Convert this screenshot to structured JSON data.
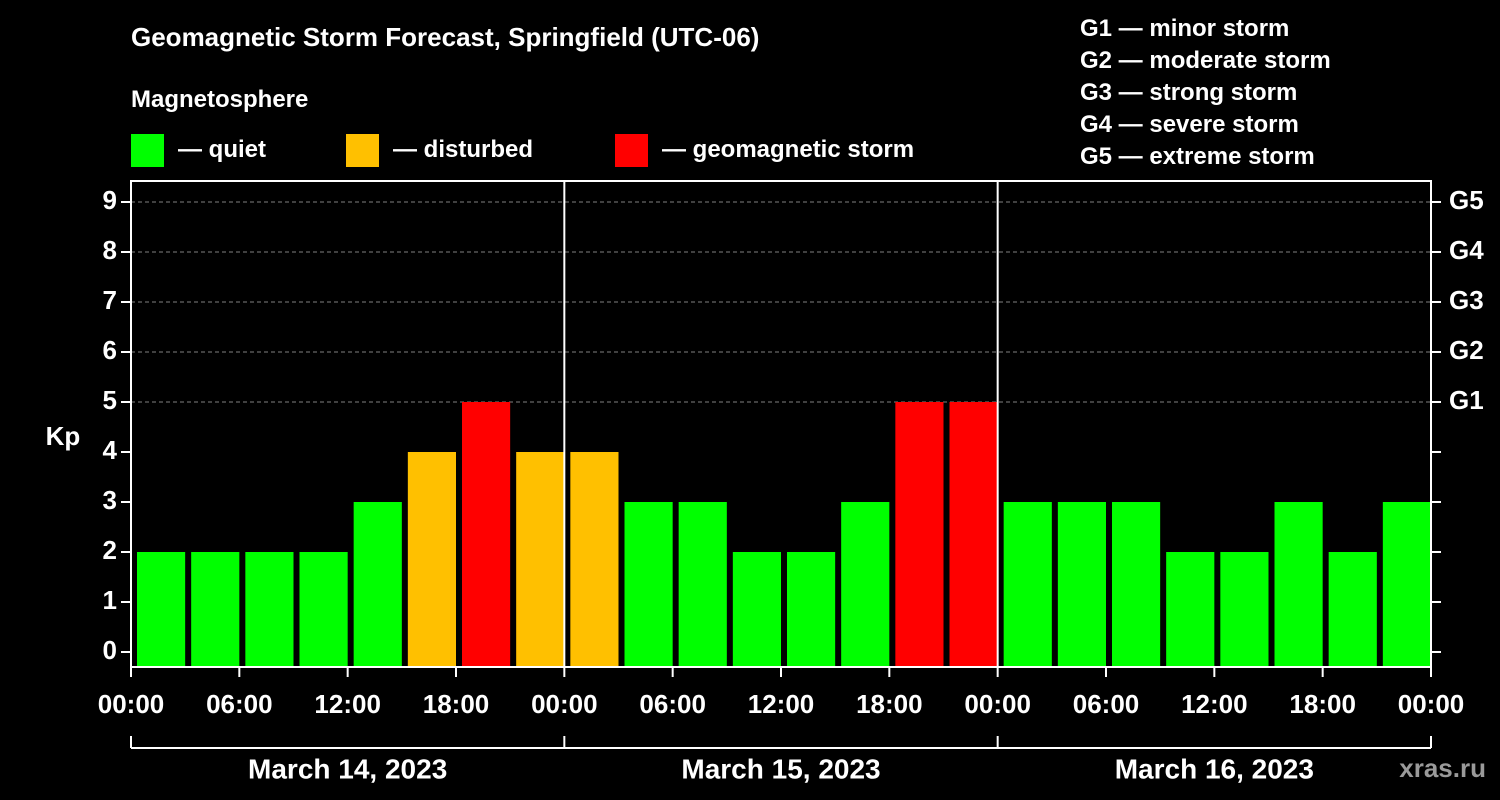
{
  "title": "Geomagnetic Storm Forecast, Springfield (UTC-06)",
  "subtitle": "Magnetosphere",
  "colors": {
    "quiet": "#00ff00",
    "disturbed": "#ffc000",
    "storm": "#ff0000",
    "background": "#000000",
    "axis": "#ffffff",
    "grid": "#808080"
  },
  "legend": [
    {
      "label": "— quiet",
      "color": "#00ff00"
    },
    {
      "label": "— disturbed",
      "color": "#ffc000"
    },
    {
      "label": "— geomagnetic storm",
      "color": "#ff0000"
    }
  ],
  "storm_scale": [
    "G1 — minor storm",
    "G2 — moderate storm",
    "G3 — strong storm",
    "G4 — severe storm",
    "G5 — extreme storm"
  ],
  "watermark": "xras.ru",
  "chart_data": {
    "type": "bar",
    "title": "Geomagnetic Storm Forecast, Springfield (UTC-06)",
    "ylabel": "Kp",
    "ylim": [
      0,
      9
    ],
    "yticks": [
      0,
      1,
      2,
      3,
      4,
      5,
      6,
      7,
      8,
      9
    ],
    "right_axis_labels": [
      {
        "kp": 5,
        "label": "G1"
      },
      {
        "kp": 6,
        "label": "G2"
      },
      {
        "kp": 7,
        "label": "G3"
      },
      {
        "kp": 8,
        "label": "G4"
      },
      {
        "kp": 9,
        "label": "G5"
      }
    ],
    "interval_hours": 3,
    "xtick_labels": [
      "00:00",
      "06:00",
      "12:00",
      "18:00",
      "00:00",
      "06:00",
      "12:00",
      "18:00",
      "00:00",
      "06:00",
      "12:00",
      "18:00",
      "00:00"
    ],
    "days": [
      "March 14, 2023",
      "March 15, 2023",
      "March 16, 2023"
    ],
    "series": [
      {
        "name": "Kp",
        "values": [
          2,
          2,
          2,
          2,
          3,
          4,
          5,
          4,
          4,
          3,
          3,
          2,
          2,
          3,
          5,
          5,
          3,
          3,
          3,
          2,
          2,
          3,
          2,
          3
        ]
      }
    ],
    "category_thresholds": {
      "disturbed_min": 4,
      "storm_min": 5
    },
    "grid": true
  }
}
